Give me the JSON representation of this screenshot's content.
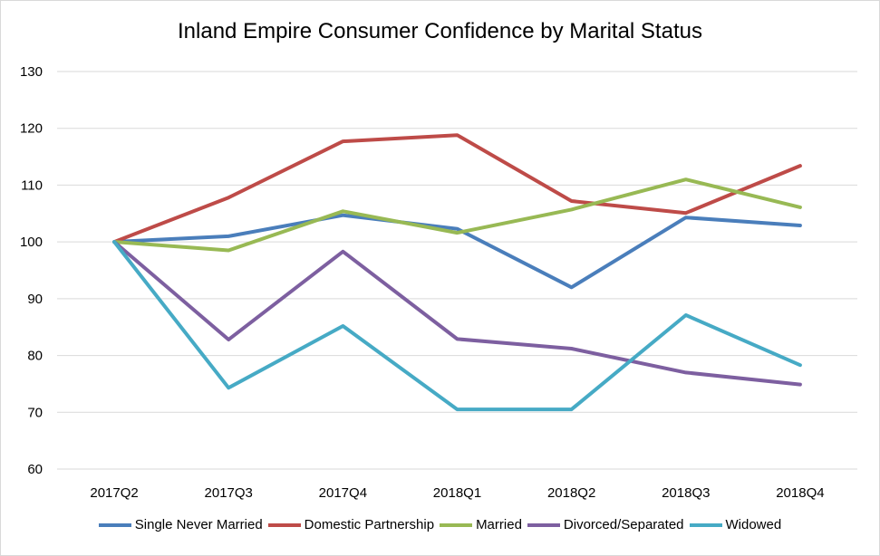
{
  "chart_data": {
    "type": "line",
    "title": "Inland Empire Consumer Confidence by Marital Status",
    "xlabel": "",
    "ylabel": "",
    "categories": [
      "2017Q2",
      "2017Q3",
      "2017Q4",
      "2018Q1",
      "2018Q2",
      "2018Q3",
      "2018Q4"
    ],
    "ylim": [
      60,
      130
    ],
    "yticks": [
      60,
      70,
      80,
      90,
      100,
      110,
      120,
      130
    ],
    "grid": true,
    "legend_position": "bottom",
    "series": [
      {
        "name": "Single Never Married",
        "color": "#4a7ebb",
        "values": [
          100,
          101,
          104.7,
          102.3,
          92,
          104.3,
          102.9
        ]
      },
      {
        "name": "Domestic Partnership",
        "color": "#be4b48",
        "values": [
          100,
          107.8,
          117.7,
          118.8,
          107.2,
          105.1,
          113.4
        ]
      },
      {
        "name": "Married",
        "color": "#98b954",
        "values": [
          100,
          98.5,
          105.4,
          101.6,
          105.7,
          111,
          106.1
        ]
      },
      {
        "name": "Divorced/Separated",
        "color": "#7d5fa0",
        "values": [
          100,
          82.8,
          98.3,
          82.9,
          81.2,
          77,
          74.9
        ]
      },
      {
        "name": "Widowed",
        "color": "#46aac5",
        "values": [
          100,
          74.3,
          85.2,
          70.5,
          70.5,
          87.1,
          78.3
        ]
      }
    ]
  }
}
